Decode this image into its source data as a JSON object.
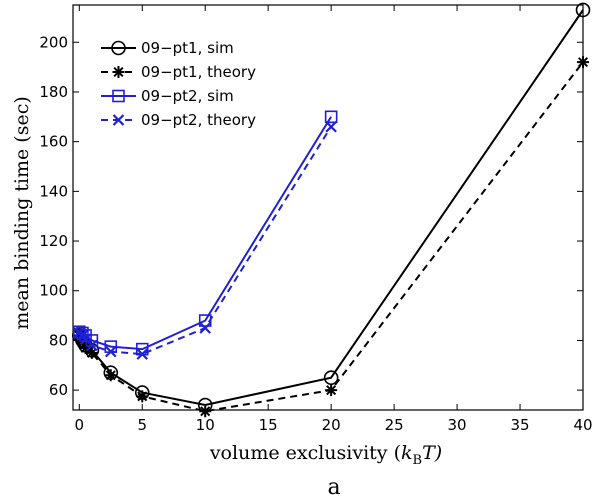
{
  "chart_data": {
    "type": "line",
    "xlabel": "volume exclusivity (",
    "xlabel_math": "k",
    "xlabel_sub": "B",
    "xlabel_tail": "T)",
    "ylabel": "mean binding time (sec)",
    "caption": "a",
    "xlim": [
      -0.5,
      40
    ],
    "ylim": [
      52,
      215
    ],
    "xticks": [
      0,
      5,
      10,
      15,
      20,
      25,
      30,
      35,
      40
    ],
    "yticks": [
      60,
      80,
      100,
      120,
      140,
      160,
      180,
      200
    ],
    "legend_position": "top-left",
    "series": [
      {
        "name": "09−pt1, sim",
        "color": "#000000",
        "line": "solid",
        "marker": "circle",
        "x": [
          0,
          0.25,
          0.5,
          1,
          2.5,
          5,
          10,
          20,
          40
        ],
        "y": [
          82,
          80,
          78,
          76,
          67,
          59,
          54,
          65,
          213
        ]
      },
      {
        "name": "09−pt1, theory",
        "color": "#000000",
        "line": "dashed",
        "marker": "asterisk",
        "x": [
          0,
          0.25,
          0.5,
          1,
          2.5,
          5,
          10,
          20,
          40
        ],
        "y": [
          82,
          79,
          77,
          75,
          66,
          57.5,
          51.5,
          60,
          192
        ]
      },
      {
        "name": "09−pt2, sim",
        "color": "#1f1fd6",
        "line": "solid",
        "marker": "square",
        "x": [
          0,
          0.25,
          0.5,
          1,
          2.5,
          5,
          10,
          20
        ],
        "y": [
          83.5,
          83,
          82,
          80,
          77.5,
          76.5,
          88,
          170
        ]
      },
      {
        "name": "09−pt2, theory",
        "color": "#1f1fd6",
        "line": "dashed",
        "marker": "x",
        "x": [
          0,
          0.25,
          0.5,
          1,
          2.5,
          5,
          10,
          20
        ],
        "y": [
          83,
          82,
          80.5,
          78,
          75.5,
          74.5,
          85,
          166
        ]
      }
    ]
  }
}
